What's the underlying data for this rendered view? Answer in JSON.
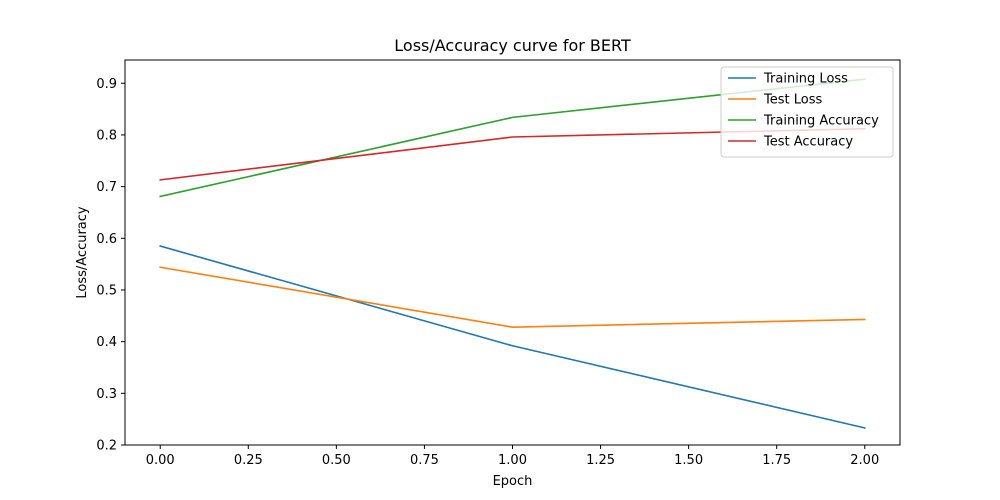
{
  "chart_data": {
    "type": "line",
    "title": "Loss/Accuracy curve for BERT",
    "xlabel": "Epoch",
    "ylabel": "Loss/Accuracy",
    "xlim": [
      -0.1,
      2.1
    ],
    "ylim": [
      0.2,
      0.945
    ],
    "xticks": [
      0.0,
      0.25,
      0.5,
      0.75,
      1.0,
      1.25,
      1.5,
      1.75,
      2.0
    ],
    "xtick_labels": [
      "0.00",
      "0.25",
      "0.50",
      "0.75",
      "1.00",
      "1.25",
      "1.50",
      "1.75",
      "2.00"
    ],
    "yticks": [
      0.2,
      0.3,
      0.4,
      0.5,
      0.6,
      0.7,
      0.8,
      0.9
    ],
    "ytick_labels": [
      "0.2",
      "0.3",
      "0.4",
      "0.5",
      "0.6",
      "0.7",
      "0.8",
      "0.9"
    ],
    "grid": false,
    "legend_position": "top-right",
    "x": [
      0,
      1,
      2
    ],
    "series": [
      {
        "name": "Training Loss",
        "color": "#1f77b4",
        "values": [
          0.585,
          0.392,
          0.233
        ]
      },
      {
        "name": "Test Loss",
        "color": "#ff7f0e",
        "values": [
          0.544,
          0.428,
          0.443
        ]
      },
      {
        "name": "Training Accuracy",
        "color": "#2ca02c",
        "values": [
          0.681,
          0.834,
          0.908
        ]
      },
      {
        "name": "Test Accuracy",
        "color": "#d62728",
        "values": [
          0.713,
          0.796,
          0.812
        ]
      }
    ]
  }
}
